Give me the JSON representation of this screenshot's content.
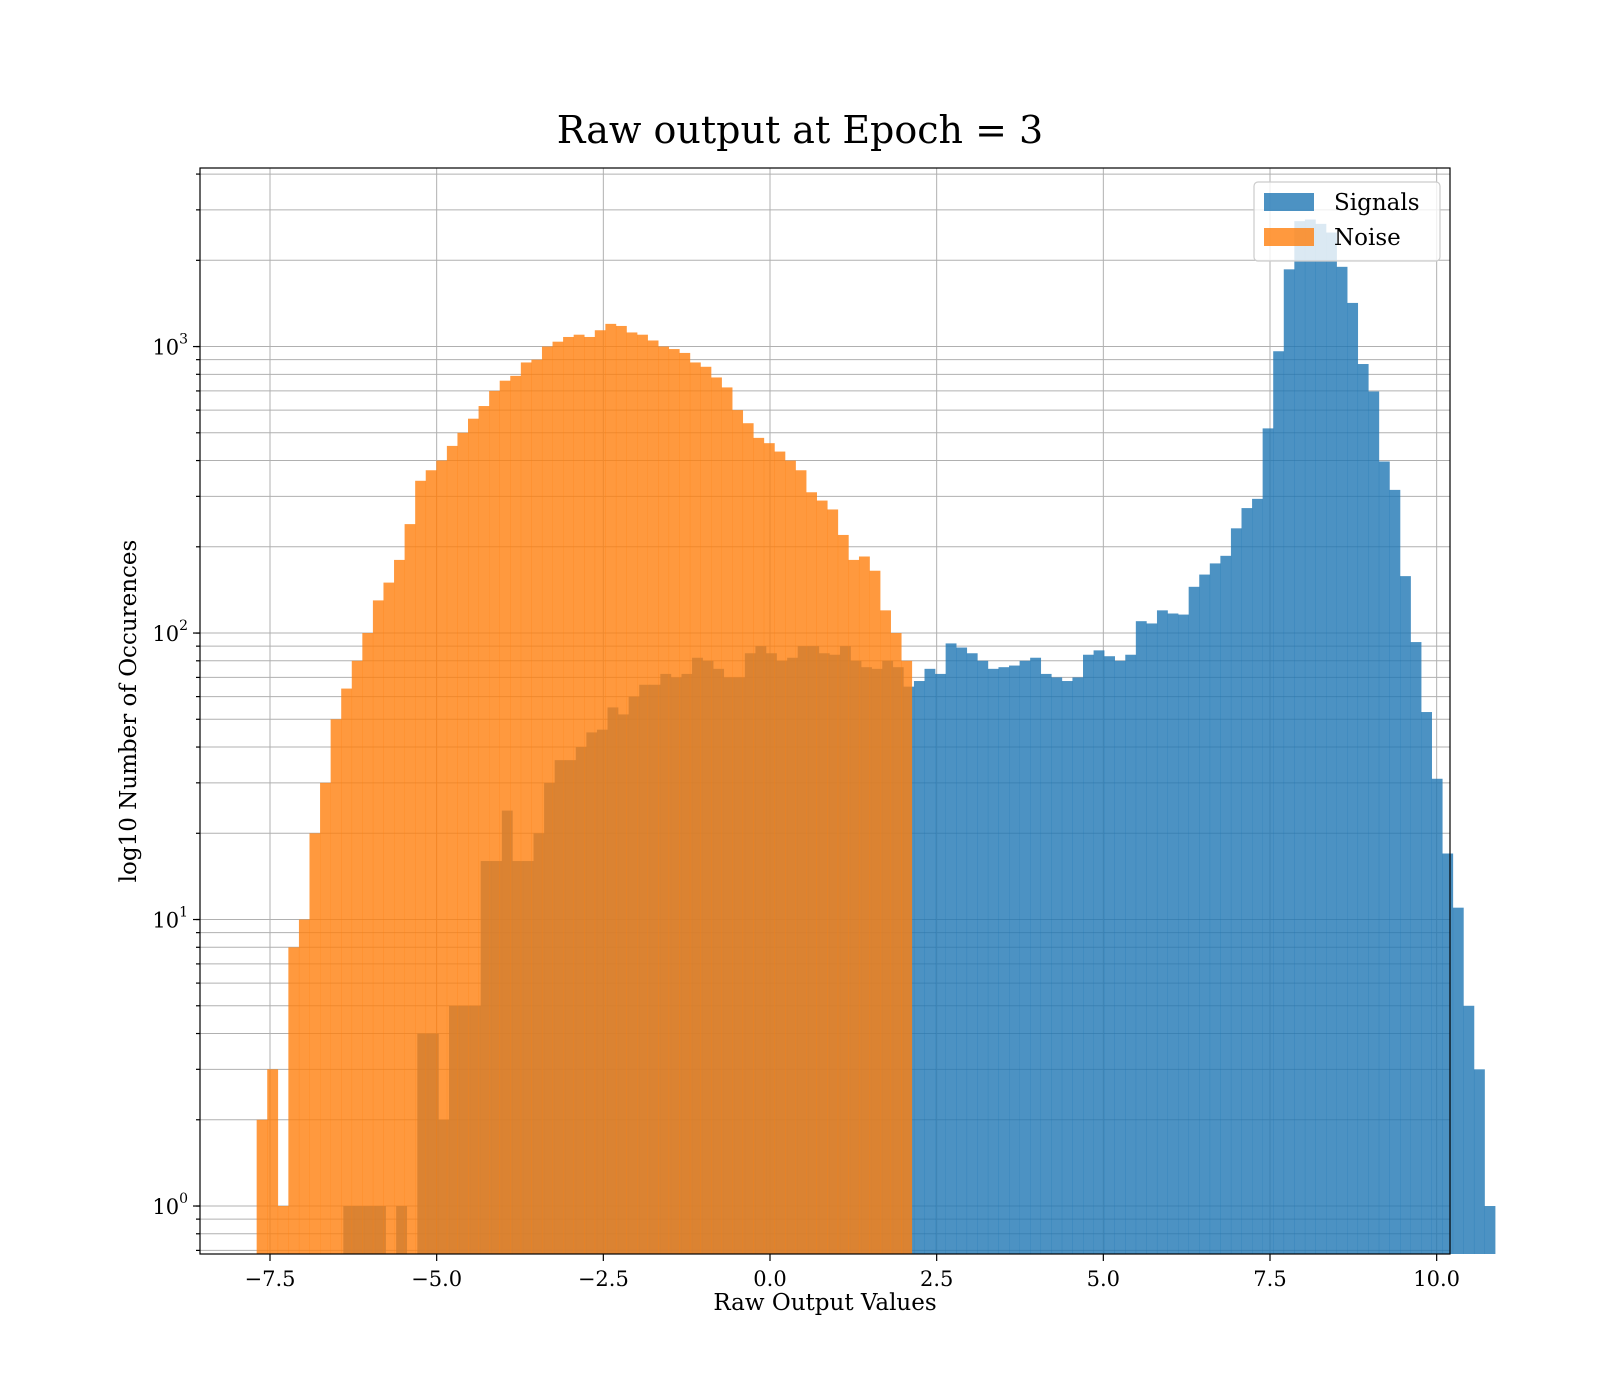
{
  "chart_data": {
    "type": "bar",
    "title": "Raw output at Epoch = 3",
    "xlabel": "Raw Output Values",
    "ylabel": "log10 Number of Occurences",
    "xlim": [
      -8.55,
      10.2
    ],
    "ylim": [
      0.68,
      4200
    ],
    "yscale": "log",
    "grid": true,
    "legend": "top-right",
    "x_ticks": [
      {
        "value": -7.5,
        "label": "−7.5"
      },
      {
        "value": -5.0,
        "label": "−5.0"
      },
      {
        "value": -2.5,
        "label": "−2.5"
      },
      {
        "value": 0.0,
        "label": "0.0"
      },
      {
        "value": 2.5,
        "label": "2.5"
      },
      {
        "value": 5.0,
        "label": "5.0"
      },
      {
        "value": 7.5,
        "label": "7.5"
      },
      {
        "value": 10.0,
        "label": "10.0"
      }
    ],
    "y_ticks": [
      {
        "value": 1,
        "base": "10",
        "exp": "0"
      },
      {
        "value": 10,
        "base": "10",
        "exp": "1"
      },
      {
        "value": 100,
        "base": "10",
        "exp": "2"
      },
      {
        "value": 1000,
        "base": "10",
        "exp": "3"
      }
    ],
    "series": [
      {
        "name": "Signals",
        "color": "#1f77b4",
        "opacity": 0.8,
        "x_start": -6.4,
        "bin_width": 0.1585,
        "values": [
          1,
          1,
          1,
          1,
          0,
          1,
          0,
          4,
          4,
          2,
          5,
          5,
          5,
          16,
          16,
          24,
          16,
          16,
          20,
          30,
          36,
          36,
          40,
          45,
          46,
          55,
          52,
          60,
          66,
          66,
          72,
          70,
          72,
          82,
          80,
          75,
          70,
          70,
          85,
          90,
          85,
          80,
          82,
          90,
          90,
          85,
          84,
          90,
          80,
          76,
          75,
          80,
          76,
          65,
          68,
          75,
          72,
          92,
          89,
          85,
          80,
          75,
          76,
          77,
          80,
          82,
          72,
          70,
          68,
          70,
          84,
          87,
          83,
          80,
          84,
          110,
          108,
          120,
          117,
          116,
          145,
          160,
          175,
          186,
          232,
          273,
          294,
          518,
          963,
          1860,
          2740,
          2776,
          2681,
          2500,
          1898,
          1420,
          869,
          697,
          397,
          316,
          158,
          93,
          53,
          31,
          17,
          11,
          5,
          3,
          1
        ]
      },
      {
        "name": "Noise",
        "color": "#ff7f0e",
        "opacity": 0.8,
        "x_start": -7.7,
        "bin_width": 0.1585,
        "values": [
          2,
          3,
          1,
          8,
          10,
          20,
          30,
          50,
          64,
          80,
          100,
          130,
          150,
          180,
          240,
          340,
          370,
          400,
          450,
          500,
          560,
          620,
          700,
          760,
          790,
          880,
          900,
          1000,
          1040,
          1080,
          1100,
          1080,
          1140,
          1200,
          1180,
          1120,
          1100,
          1050,
          1000,
          980,
          950,
          880,
          850,
          780,
          720,
          600,
          540,
          480,
          460,
          430,
          400,
          370,
          310,
          290,
          270,
          220,
          180,
          185,
          165,
          120,
          100,
          80
        ]
      }
    ]
  }
}
